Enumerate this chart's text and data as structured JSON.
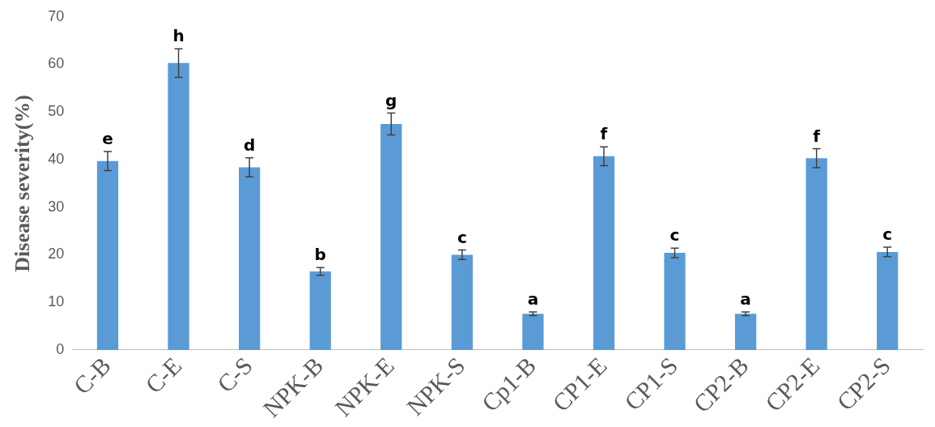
{
  "chart_data": {
    "type": "bar",
    "ylabel": "Disease severity(%)",
    "categories": [
      "C-B",
      "C-E",
      "C-S",
      "NPK-B",
      "NPK-E",
      "NPK-S",
      "Cp1-B",
      "CP1-E",
      "CP1-S",
      "CP2-B",
      "CP2-E",
      "CP2-S"
    ],
    "values": [
      39.7,
      60.3,
      38.4,
      16.5,
      47.5,
      20,
      7.6,
      40.7,
      20.4,
      7.6,
      40.3,
      20.6
    ],
    "errors": [
      2,
      3,
      2,
      0.8,
      2.3,
      1,
      0.4,
      2,
      1,
      0.4,
      2,
      1
    ],
    "color": "#5b9bd5",
    "ylim": [
      0,
      70
    ],
    "yticks": [
      0,
      10,
      20,
      30,
      40,
      50,
      60,
      70
    ],
    "grid": false,
    "legend": false,
    "annotations": [
      {
        "text": "e",
        "x": "C-B",
        "y": 41.7
      },
      {
        "text": "h",
        "x": "C-E",
        "y": 63.3
      },
      {
        "text": "d",
        "x": "C-S",
        "y": 40.4
      },
      {
        "text": "b",
        "x": "NPK-B",
        "y": 17.3
      },
      {
        "text": "g",
        "x": "NPK-E",
        "y": 49.8
      },
      {
        "text": "c",
        "x": "NPK-S",
        "y": 21
      },
      {
        "text": "a",
        "x": "Cp1-B",
        "y": 8
      },
      {
        "text": "f",
        "x": "CP1-E",
        "y": 42.7
      },
      {
        "text": "c",
        "x": "CP1-S",
        "y": 21.4
      },
      {
        "text": "a",
        "x": "CP2-B",
        "y": 8
      },
      {
        "text": "f",
        "x": "CP2-E",
        "y": 42.3
      },
      {
        "text": "c",
        "x": "CP2-S",
        "y": 21.6
      }
    ]
  }
}
